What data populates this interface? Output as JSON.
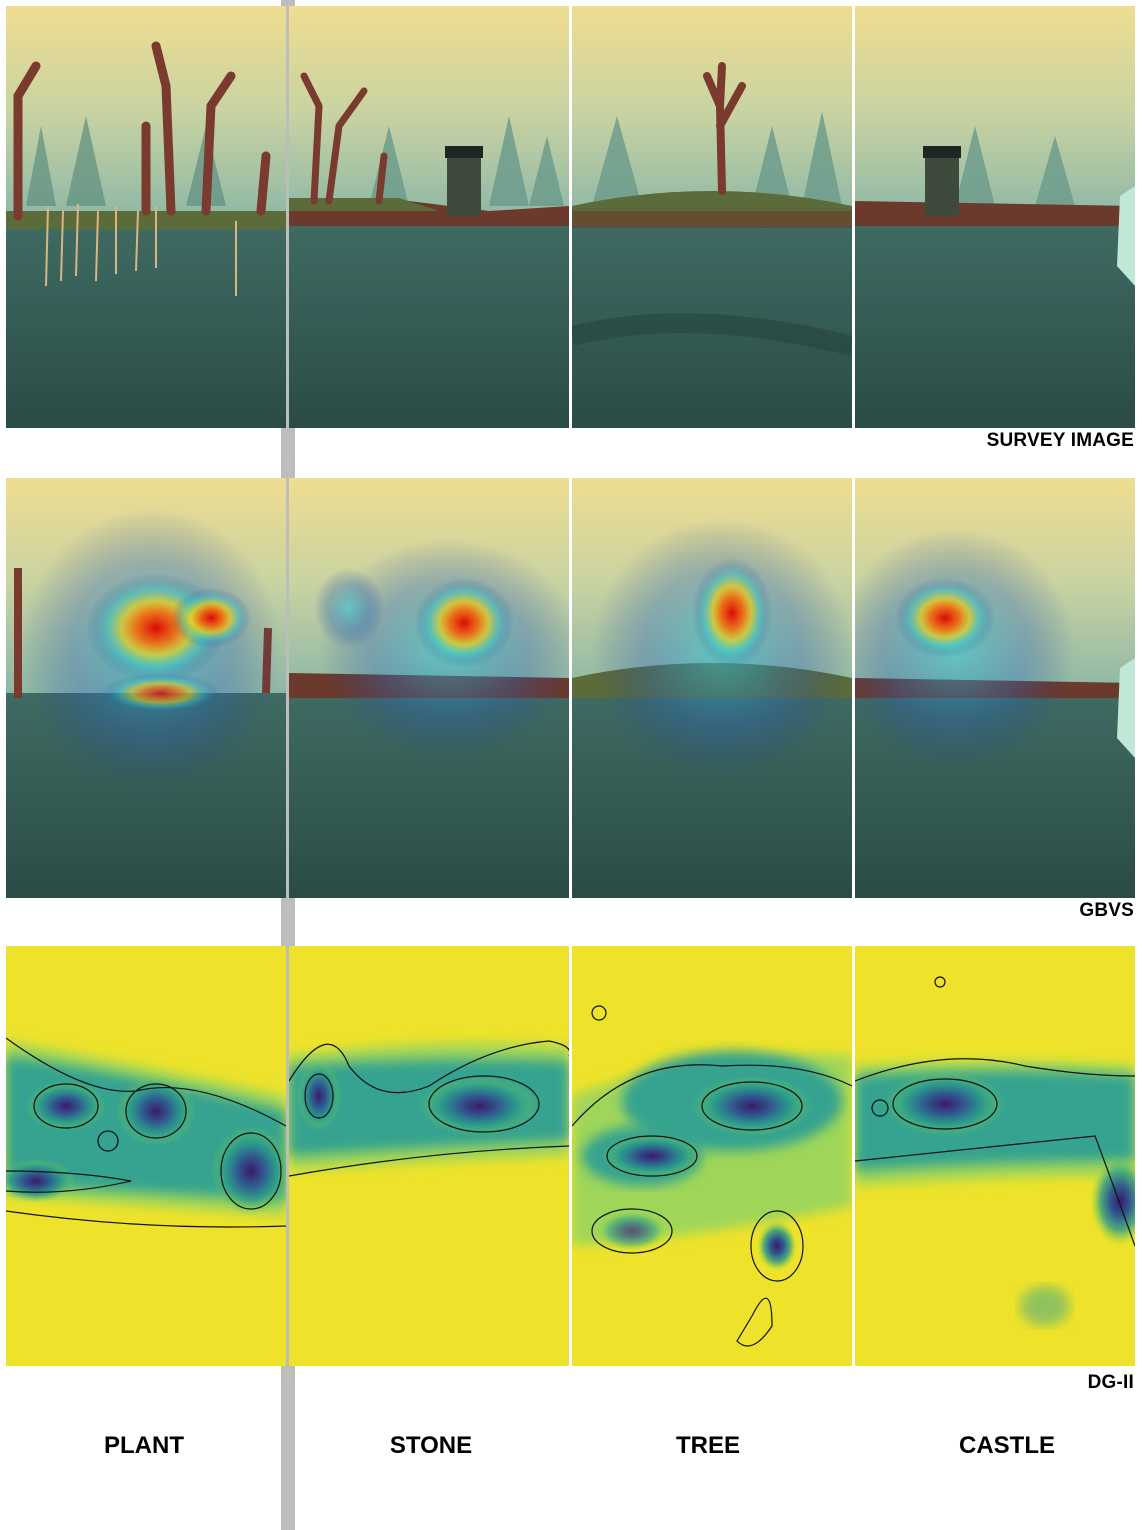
{
  "rows": [
    {
      "key": "survey",
      "label": "SURVEY IMAGE"
    },
    {
      "key": "gbvs",
      "label": "GBVS"
    },
    {
      "key": "dg2",
      "label": "DG-II"
    }
  ],
  "columns": [
    {
      "key": "plant",
      "label": "PLANT"
    },
    {
      "key": "stone",
      "label": "STONE"
    },
    {
      "key": "tree",
      "label": "TREE"
    },
    {
      "key": "castle",
      "label": "CASTLE"
    }
  ],
  "colors": {
    "sky_top": "#efdd90",
    "fog": "#8fb8a6",
    "water": "#2f5650",
    "heat_hot": "#e00000",
    "density_low": "#f0e62a",
    "density_high": "#3b1a6e"
  }
}
